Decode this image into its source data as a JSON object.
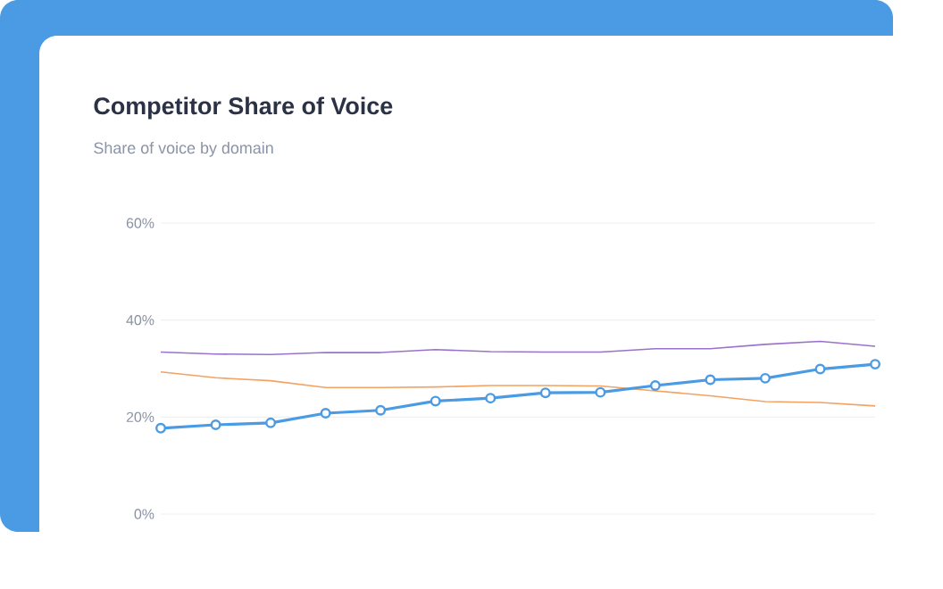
{
  "chart_data": {
    "type": "line",
    "title": "Competitor Share of Voice",
    "subtitle": "Share of voice by domain",
    "categories": [
      null,
      null,
      null,
      null,
      null,
      null,
      null,
      null,
      null,
      null,
      null,
      null,
      null,
      null
    ],
    "series": [
      {
        "color": "#9b72cb",
        "values": [
          33.4,
          33.0,
          32.9,
          33.3,
          33.3,
          33.9,
          33.5,
          33.4,
          33.4,
          34.1,
          34.1,
          35.0,
          35.6,
          34.6
        ]
      },
      {
        "color": "#f4a261",
        "values": [
          29.3,
          28.1,
          27.5,
          26.1,
          26.1,
          26.2,
          26.5,
          26.5,
          26.4,
          25.4,
          24.4,
          23.2,
          23.0,
          22.3
        ]
      },
      {
        "color": "#4a9be4",
        "marker": "circle",
        "values": [
          17.7,
          18.4,
          18.8,
          20.8,
          21.4,
          23.3,
          23.9,
          25.0,
          25.1,
          26.5,
          27.7,
          28.0,
          29.9,
          30.9
        ]
      }
    ],
    "ylim": [
      0,
      60
    ],
    "yticks": [
      {
        "value": 0,
        "label": "0%"
      },
      {
        "value": 20,
        "label": "20%"
      },
      {
        "value": 40,
        "label": "40%"
      },
      {
        "value": 60,
        "label": "60%"
      }
    ],
    "grid": "y",
    "legend": false,
    "tick_labels": "y",
    "line_style": "solid"
  }
}
